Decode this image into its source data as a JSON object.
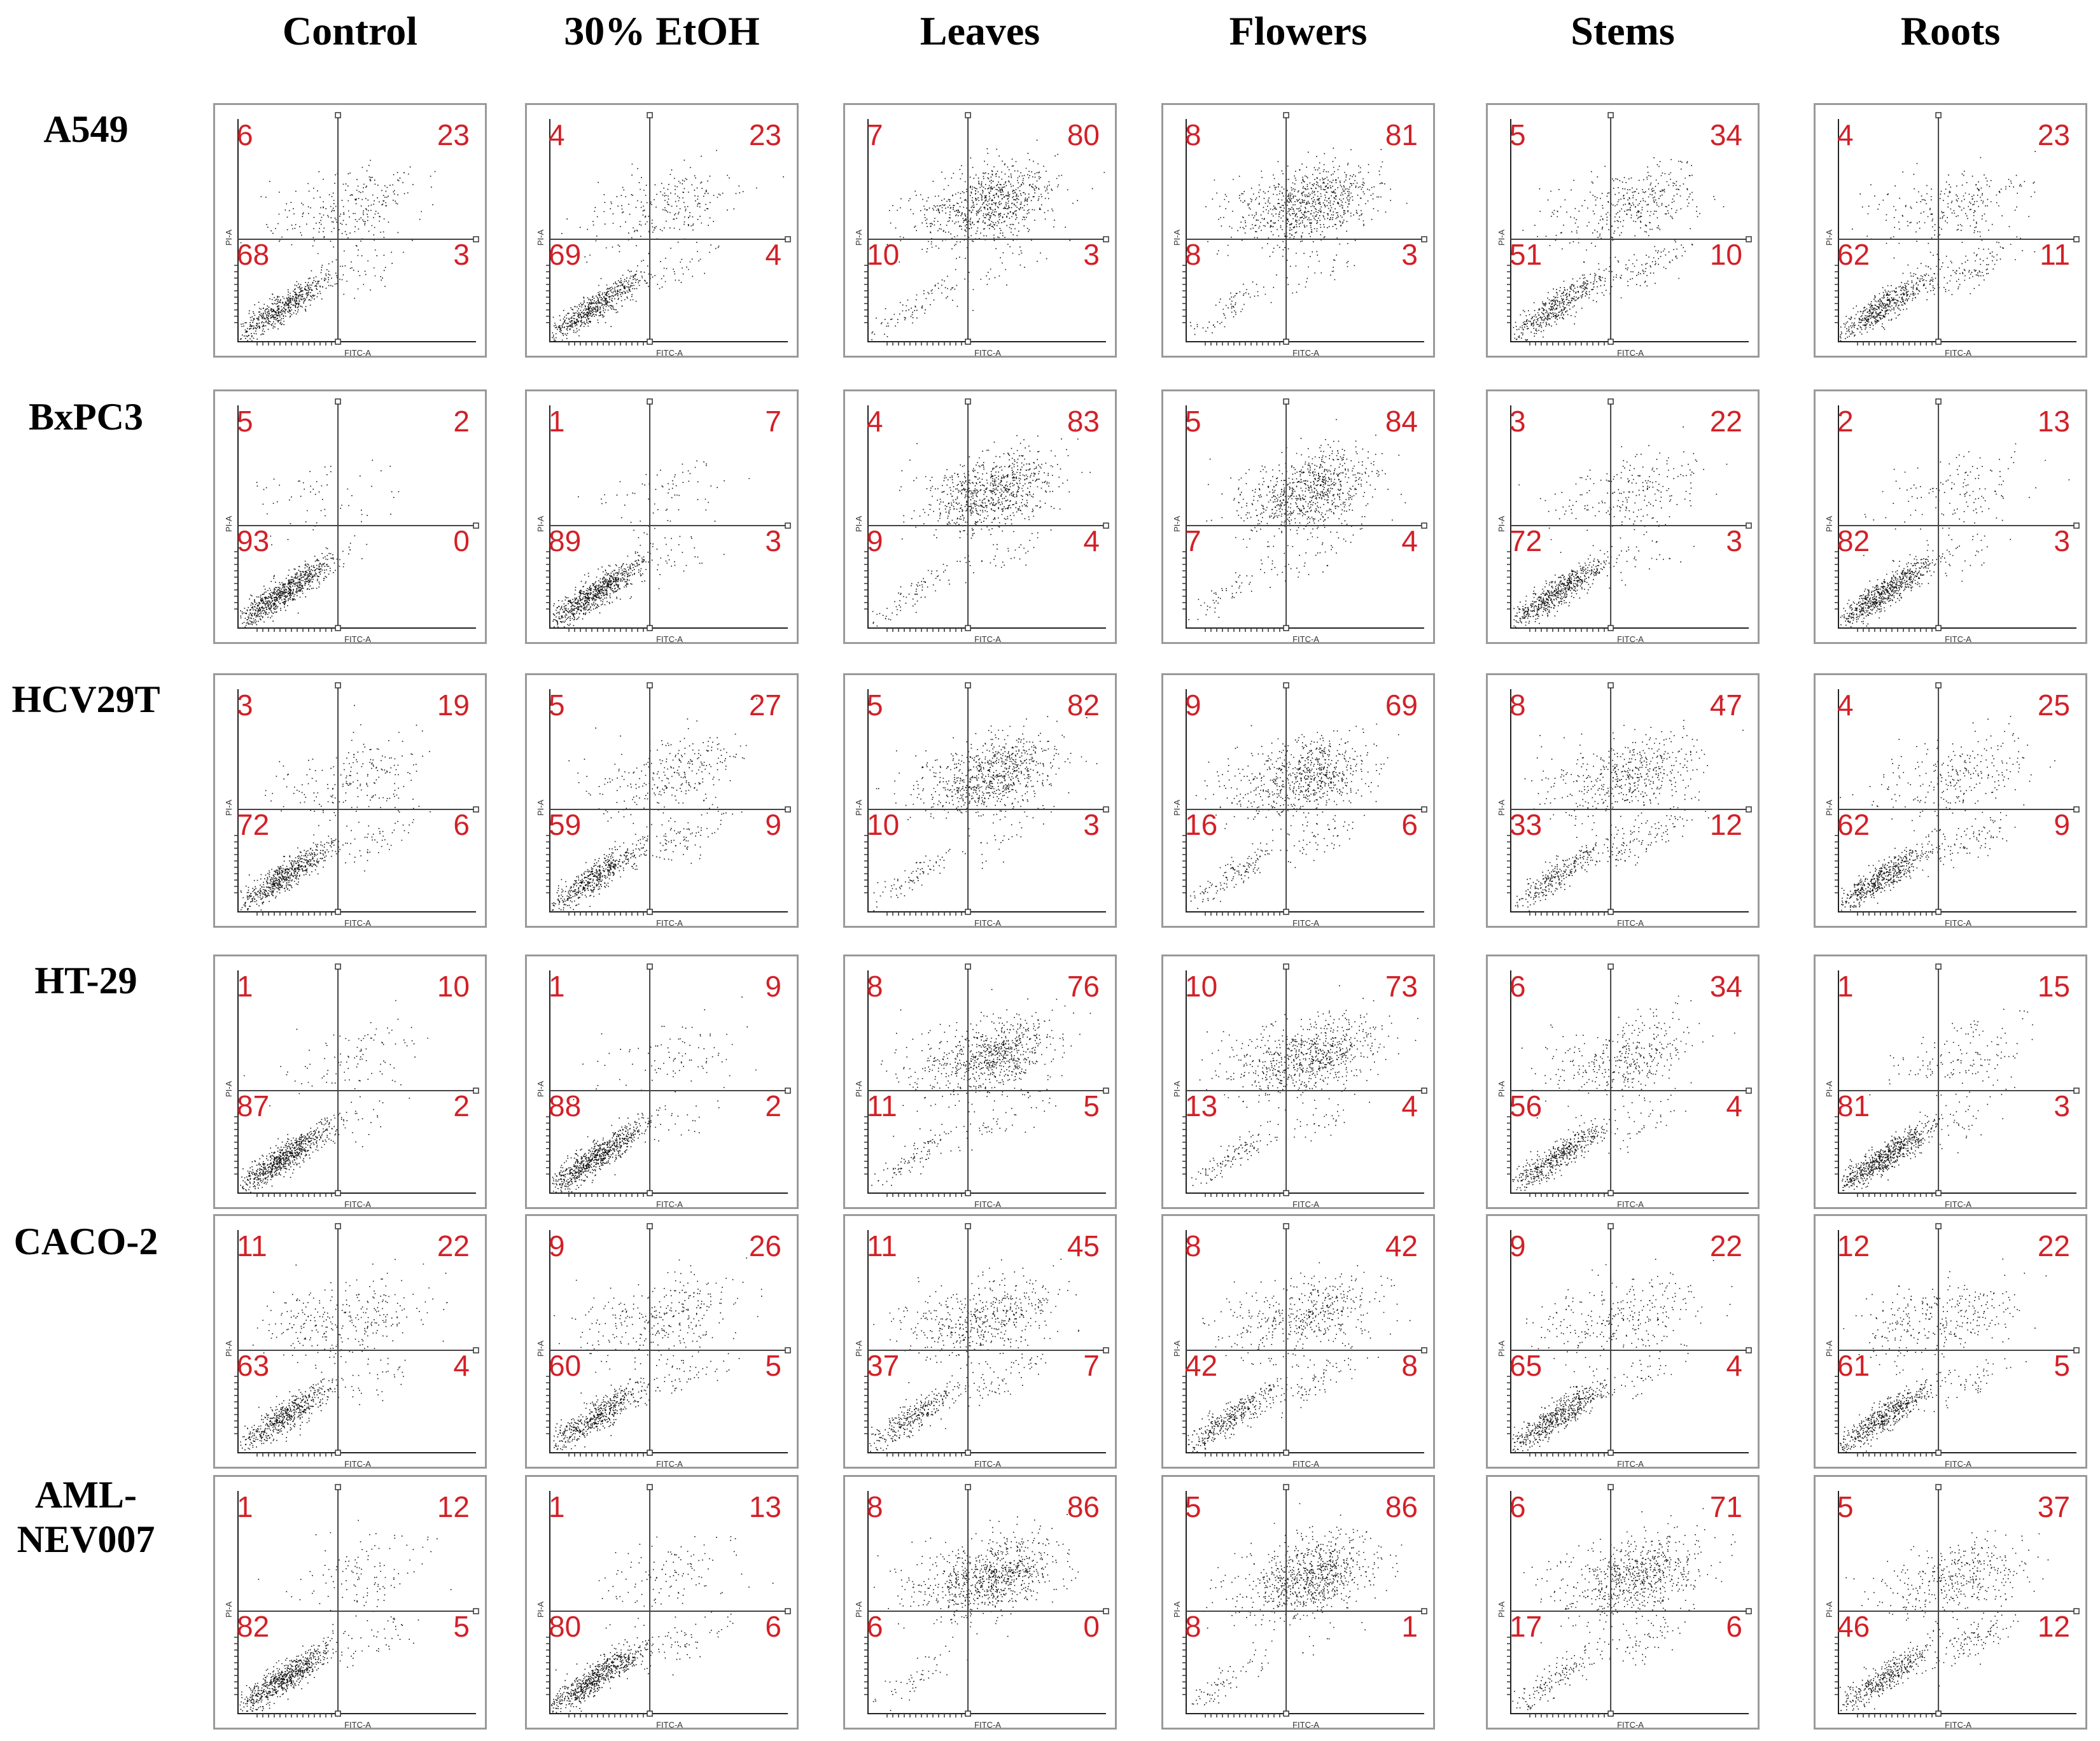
{
  "chart_data": {
    "type": "scatter",
    "title": "",
    "xlabel": "FITC-A",
    "ylabel": "PI-A",
    "columns": [
      "Control",
      "30% EtOH",
      "Leaves",
      "Flowers",
      "Stems",
      "Roots"
    ],
    "rows": [
      {
        "label": "A549",
        "panels": [
          {
            "ul": "6",
            "ur": "23",
            "ll": "68",
            "lr": "3"
          },
          {
            "ul": "4",
            "ur": "23",
            "ll": "69",
            "lr": "4"
          },
          {
            "ul": "7",
            "ur": "80",
            "ll": "10",
            "lr": "3"
          },
          {
            "ul": "8",
            "ur": "81",
            "ll": "8",
            "lr": "3"
          },
          {
            "ul": "5",
            "ur": "34",
            "ll": "51",
            "lr": "10"
          },
          {
            "ul": "4",
            "ur": "23",
            "ll": "62",
            "lr": "11"
          }
        ]
      },
      {
        "label": "BxPC3",
        "panels": [
          {
            "ul": "5",
            "ur": "2",
            "ll": "93",
            "lr": "0"
          },
          {
            "ul": "1",
            "ur": "7",
            "ll": "89",
            "lr": "3"
          },
          {
            "ul": "4",
            "ur": "83",
            "ll": "9",
            "lr": "4"
          },
          {
            "ul": "5",
            "ur": "84",
            "ll": "7",
            "lr": "4"
          },
          {
            "ul": "3",
            "ur": "22",
            "ll": "72",
            "lr": "3"
          },
          {
            "ul": "2",
            "ur": "13",
            "ll": "82",
            "lr": "3"
          }
        ]
      },
      {
        "label": "HCV29T",
        "panels": [
          {
            "ul": "3",
            "ur": "19",
            "ll": "72",
            "lr": "6"
          },
          {
            "ul": "5",
            "ur": "27",
            "ll": "59",
            "lr": "9"
          },
          {
            "ul": "5",
            "ur": "82",
            "ll": "10",
            "lr": "3"
          },
          {
            "ul": "9",
            "ur": "69",
            "ll": "16",
            "lr": "6"
          },
          {
            "ul": "8",
            "ur": "47",
            "ll": "33",
            "lr": "12"
          },
          {
            "ul": "4",
            "ur": "25",
            "ll": "62",
            "lr": "9"
          }
        ]
      },
      {
        "label": "HT-29",
        "panels": [
          {
            "ul": "1",
            "ur": "10",
            "ll": "87",
            "lr": "2"
          },
          {
            "ul": "1",
            "ur": "9",
            "ll": "88",
            "lr": "2"
          },
          {
            "ul": "8",
            "ur": "76",
            "ll": "11",
            "lr": "5"
          },
          {
            "ul": "10",
            "ur": "73",
            "ll": "13",
            "lr": "4"
          },
          {
            "ul": "6",
            "ur": "34",
            "ll": "56",
            "lr": "4"
          },
          {
            "ul": "1",
            "ur": "15",
            "ll": "81",
            "lr": "3"
          }
        ]
      },
      {
        "label": "CACO-2",
        "panels": [
          {
            "ul": "11",
            "ur": "22",
            "ll": "63",
            "lr": "4"
          },
          {
            "ul": "9",
            "ur": "26",
            "ll": "60",
            "lr": "5"
          },
          {
            "ul": "11",
            "ur": "45",
            "ll": "37",
            "lr": "7"
          },
          {
            "ul": "8",
            "ur": "42",
            "ll": "42",
            "lr": "8"
          },
          {
            "ul": "9",
            "ur": "22",
            "ll": "65",
            "lr": "4"
          },
          {
            "ul": "12",
            "ur": "22",
            "ll": "61",
            "lr": "5"
          }
        ]
      },
      {
        "label": "AML-NEV007",
        "label_lines": [
          "AML-",
          "NEV007"
        ],
        "panels": [
          {
            "ul": "1",
            "ur": "12",
            "ll": "82",
            "lr": "5"
          },
          {
            "ul": "1",
            "ur": "13",
            "ll": "80",
            "lr": "6"
          },
          {
            "ul": "8",
            "ur": "86",
            "ll": "6",
            "lr": "0"
          },
          {
            "ul": "5",
            "ur": "86",
            "ll": "8",
            "lr": "1"
          },
          {
            "ul": "6",
            "ur": "71",
            "ll": "17",
            "lr": "6"
          },
          {
            "ul": "5",
            "ur": "37",
            "ll": "46",
            "lr": "12"
          }
        ]
      }
    ],
    "colors": {
      "quadrant_label": "#d32027",
      "dots": "#111111",
      "gate": "#444444",
      "frame": "#9a9a9a"
    }
  }
}
